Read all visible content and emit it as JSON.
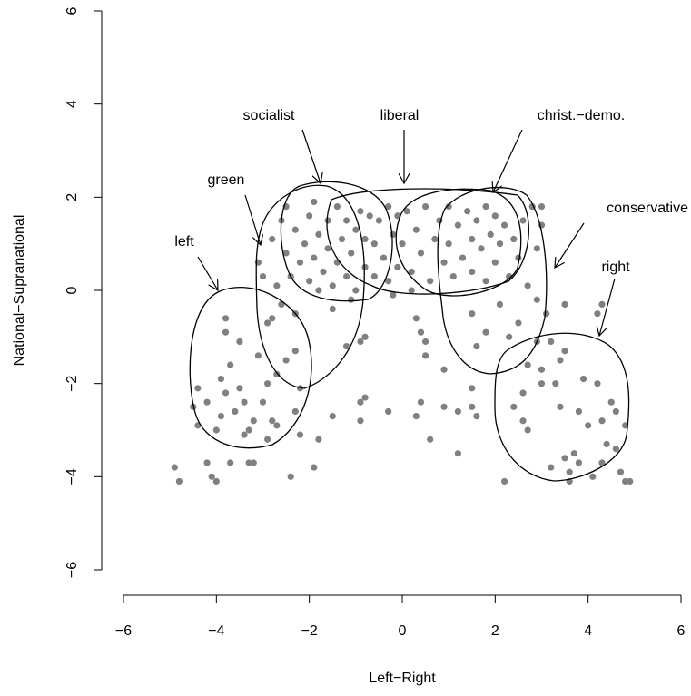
{
  "chart_data": {
    "type": "scatter",
    "xlabel": "Left−Right",
    "ylabel": "National−Supranational",
    "color": "#808080",
    "xlim": [
      -6,
      6
    ],
    "ylim": [
      -6,
      6
    ],
    "xticks": [
      {
        "value": -6,
        "label": "−6"
      },
      {
        "value": -4,
        "label": "−4"
      },
      {
        "value": -2,
        "label": "−2"
      },
      0,
      2,
      4,
      6
    ],
    "yticks": [
      {
        "value": -6,
        "label": "−6"
      },
      {
        "value": -4,
        "label": "−4"
      },
      {
        "value": -2,
        "label": "−2"
      },
      0,
      2,
      4,
      6
    ],
    "annotations": [
      "left",
      "green",
      "socialist",
      "liberal",
      "christ.−demo.",
      "conservative",
      "right"
    ],
    "x": [
      -4.9,
      -4.8,
      -4.5,
      -4.4,
      -4.2,
      -4.2,
      -4.1,
      -4.0,
      -4.0,
      -3.9,
      -3.9,
      -3.8,
      -3.8,
      -3.8,
      -3.7,
      -3.7,
      -3.6,
      -3.5,
      -3.5,
      -3.4,
      -3.4,
      -3.3,
      -3.2,
      -3.1,
      -3.0,
      -2.9,
      -2.9,
      -2.8,
      -2.8,
      -2.7,
      -2.7,
      -2.6,
      -2.5,
      -2.4,
      -2.3,
      -2.3,
      -2.2,
      -2.3,
      -2.2,
      -1.9,
      -1.8,
      -3.3,
      -4.4,
      -3.1,
      -3.0,
      -2.9,
      -3.2,
      -2.8,
      -2.6,
      -2.5,
      -2.4,
      -2.3,
      -2.2,
      -2.1,
      -2.0,
      -2.0,
      -1.9,
      -1.8,
      -1.8,
      -1.7,
      -1.6,
      -1.6,
      -1.5,
      -1.4,
      -1.4,
      -1.3,
      -1.2,
      -1.2,
      -1.1,
      -1.0,
      -1.0,
      -0.9,
      -0.8,
      -0.8,
      -0.7,
      -0.6,
      -0.6,
      -0.5,
      -0.4,
      -0.3,
      -0.3,
      -0.2,
      -0.1,
      -0.1,
      -2.7,
      -2.5,
      -1.9,
      -1.5,
      -1.2,
      -0.8,
      -0.9,
      -1.1,
      -0.8,
      -0.9,
      0.0,
      0.1,
      0.2,
      0.3,
      0.4,
      0.5,
      0.6,
      0.7,
      0.8,
      0.9,
      1.0,
      1.0,
      1.1,
      1.2,
      1.3,
      1.4,
      1.5,
      1.5,
      1.6,
      1.7,
      1.8,
      1.8,
      1.9,
      2.0,
      2.0,
      2.1,
      2.2,
      2.3,
      2.4,
      2.5,
      2.6,
      2.7,
      2.8,
      2.9,
      3.0,
      3.0,
      3.1,
      2.9,
      2.5,
      2.3,
      2.1,
      1.8,
      1.6,
      1.5,
      0.4,
      0.5,
      0.5,
      0.9,
      0.3,
      0.2,
      -0.2,
      -0.3,
      0.4,
      0.3,
      0.6,
      0.9,
      1.2,
      1.2,
      1.5,
      1.6,
      1.5,
      2.2,
      -1.5,
      -0.9,
      2.4,
      2.6,
      2.6,
      2.7,
      2.7,
      2.9,
      3.0,
      3.2,
      3.2,
      3.3,
      3.4,
      3.5,
      3.5,
      3.6,
      3.6,
      3.7,
      3.8,
      3.8,
      3.9,
      4.0,
      4.1,
      4.2,
      4.3,
      4.3,
      4.4,
      4.5,
      4.6,
      4.6,
      4.7,
      4.8,
      4.8,
      4.9,
      4.3,
      3.4,
      3.5,
      4.2,
      3.0
    ],
    "values": [
      -3.8,
      -4.1,
      -2.5,
      -2.1,
      -3.7,
      -2.4,
      -4.0,
      -4.1,
      -3.0,
      -2.7,
      -1.9,
      -0.9,
      -0.6,
      -2.2,
      -1.6,
      -3.7,
      -2.6,
      -2.1,
      -1.1,
      -3.1,
      -2.4,
      -3.7,
      -2.8,
      -1.4,
      -2.4,
      -2.0,
      -3.2,
      -0.6,
      -2.8,
      -1.8,
      -2.9,
      -0.3,
      -1.5,
      -4.0,
      -1.3,
      -2.6,
      -2.1,
      -0.5,
      -3.1,
      -3.8,
      -3.2,
      -3.0,
      -2.9,
      0.6,
      0.3,
      -0.7,
      -3.7,
      1.1,
      1.5,
      0.8,
      0.3,
      1.3,
      0.6,
      1.0,
      1.6,
      0.2,
      0.7,
      1.2,
      0.0,
      0.4,
      1.5,
      0.9,
      0.1,
      0.6,
      1.8,
      1.1,
      0.3,
      1.5,
      0.8,
      0.0,
      1.3,
      1.7,
      0.5,
      1.1,
      1.6,
      0.3,
      1.0,
      1.5,
      0.7,
      1.8,
      0.2,
      1.2,
      0.5,
      1.6,
      0.1,
      1.8,
      1.9,
      -0.4,
      -1.2,
      -2.3,
      -2.8,
      -0.2,
      -1.0,
      -1.1,
      1.0,
      1.7,
      0.4,
      1.3,
      0.8,
      1.8,
      0.2,
      1.1,
      1.5,
      0.6,
      1.8,
      1.0,
      0.3,
      1.4,
      0.7,
      1.7,
      1.1,
      0.4,
      1.5,
      0.9,
      1.8,
      0.2,
      1.2,
      0.6,
      1.6,
      1.0,
      1.4,
      0.3,
      1.1,
      0.7,
      1.5,
      0.1,
      1.8,
      0.9,
      1.8,
      1.4,
      -0.5,
      -0.2,
      -0.7,
      -1.0,
      -0.3,
      -0.9,
      -1.2,
      -0.5,
      -0.9,
      -1.1,
      -1.4,
      -1.7,
      -0.6,
      0.0,
      -0.1,
      -2.6,
      -2.4,
      -2.7,
      -3.2,
      -2.5,
      -2.6,
      -3.5,
      -2.5,
      -2.7,
      -2.1,
      -4.1,
      -2.7,
      -2.4,
      -2.5,
      -2.8,
      -2.2,
      -3.0,
      -1.6,
      -1.1,
      -1.7,
      -1.1,
      -3.8,
      -2.0,
      -2.5,
      -3.6,
      -1.3,
      -3.9,
      -4.1,
      -3.5,
      -2.6,
      -3.7,
      -1.9,
      -2.9,
      -4.0,
      -2.0,
      -2.8,
      -0.3,
      -3.3,
      -2.4,
      -3.4,
      -2.6,
      -3.9,
      -2.9,
      -4.1,
      -4.1,
      -3.7,
      -1.5,
      -0.3,
      -0.5,
      -2.0
    ]
  }
}
